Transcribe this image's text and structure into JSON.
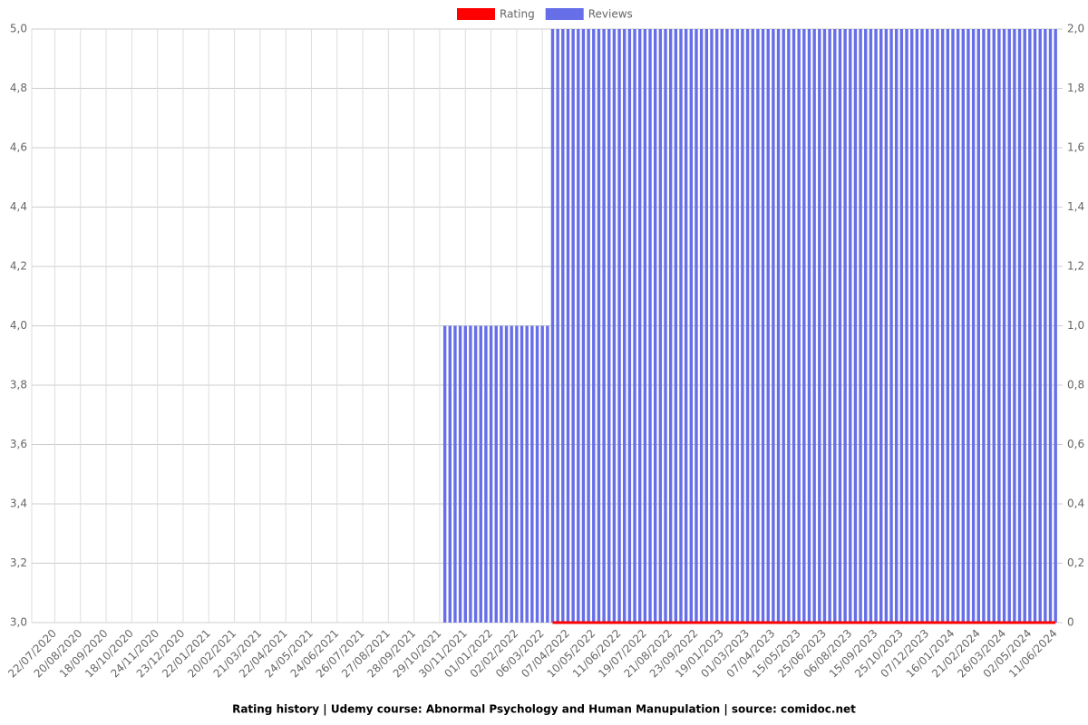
{
  "chart_data": {
    "type": "bar-line",
    "title": "Rating history | Udemy course: Abnormal Psychology and Human Manupulation | source: comidoc.net",
    "categories": [
      null,
      null,
      null,
      null,
      "22/07/2020",
      null,
      null,
      null,
      null,
      "20/08/2020",
      null,
      null,
      null,
      null,
      "18/09/2020",
      null,
      null,
      null,
      null,
      "18/10/2020",
      null,
      null,
      null,
      null,
      "24/11/2020",
      null,
      null,
      null,
      null,
      "23/12/2020",
      null,
      null,
      null,
      null,
      "22/01/2021",
      null,
      null,
      null,
      null,
      "20/02/2021",
      null,
      null,
      null,
      null,
      "21/03/2021",
      null,
      null,
      null,
      null,
      "22/04/2021",
      null,
      null,
      null,
      null,
      "24/05/2021",
      null,
      null,
      null,
      null,
      "24/06/2021",
      null,
      null,
      null,
      null,
      "26/07/2021",
      null,
      null,
      null,
      null,
      "27/08/2021",
      null,
      null,
      null,
      null,
      "28/09/2021",
      null,
      null,
      null,
      null,
      "29/10/2021",
      null,
      null,
      null,
      null,
      "30/11/2021",
      null,
      null,
      null,
      null,
      "01/01/2022",
      null,
      null,
      null,
      null,
      "02/02/2022",
      null,
      null,
      null,
      null,
      "06/03/2022",
      null,
      null,
      null,
      null,
      "07/04/2022",
      null,
      null,
      null,
      null,
      "10/05/2022",
      null,
      null,
      null,
      null,
      "11/06/2022",
      null,
      null,
      null,
      null,
      "19/07/2022",
      null,
      null,
      null,
      null,
      "21/08/2022",
      null,
      null,
      null,
      null,
      "23/09/2022",
      null,
      null,
      null,
      null,
      "19/01/2023",
      null,
      null,
      null,
      null,
      "01/03/2023",
      null,
      null,
      null,
      null,
      "07/04/2023",
      null,
      null,
      null,
      null,
      "15/05/2023",
      null,
      null,
      null,
      null,
      "25/06/2023",
      null,
      null,
      null,
      null,
      "06/08/2023",
      null,
      null,
      null,
      null,
      "15/09/2023",
      null,
      null,
      null,
      null,
      "25/10/2023",
      null,
      null,
      null,
      null,
      "07/12/2023",
      null,
      null,
      null,
      null,
      "16/01/2024",
      null,
      null,
      null,
      null,
      "21/02/2024",
      null,
      null,
      null,
      null,
      "26/03/2024",
      null,
      null,
      null,
      null,
      "02/05/2024",
      null,
      null,
      null,
      null,
      "11/06/2024"
    ],
    "series": [
      {
        "name": "Rating",
        "type": "line",
        "color": "#ff0000",
        "values": [
          null,
          null,
          null,
          null,
          null,
          null,
          null,
          null,
          null,
          null,
          null,
          null,
          null,
          null,
          null,
          null,
          null,
          null,
          null,
          null,
          null,
          null,
          null,
          null,
          null,
          null,
          null,
          null,
          null,
          null,
          null,
          null,
          null,
          null,
          null,
          null,
          null,
          null,
          null,
          null,
          null,
          null,
          null,
          null,
          null,
          null,
          null,
          null,
          null,
          null,
          null,
          null,
          null,
          null,
          null,
          null,
          null,
          null,
          null,
          null,
          null,
          null,
          null,
          null,
          null,
          null,
          null,
          null,
          null,
          null,
          null,
          null,
          null,
          null,
          null,
          null,
          null,
          null,
          null,
          null,
          null,
          null,
          null,
          null,
          null,
          null,
          null,
          null,
          null,
          null,
          null,
          null,
          null,
          null,
          null,
          null,
          null,
          null,
          null,
          null,
          null,
          3,
          3,
          3,
          3,
          3,
          3,
          3,
          3,
          3,
          3,
          3,
          3,
          3,
          3,
          3,
          3,
          3,
          3,
          3,
          3,
          3,
          3,
          3,
          3,
          3,
          3,
          3,
          3,
          3,
          3,
          3,
          3,
          3,
          3,
          3,
          3,
          3,
          3,
          3,
          3,
          3,
          3,
          3,
          3,
          3,
          3,
          3,
          3,
          3,
          3,
          3,
          3,
          3,
          3,
          3,
          3,
          3,
          3,
          3,
          3,
          3,
          3,
          3,
          3,
          3,
          3,
          3,
          3,
          3,
          3,
          3,
          3,
          3,
          3,
          3,
          3,
          3,
          3,
          3,
          3,
          3,
          3,
          3,
          3,
          3,
          3,
          3,
          3,
          3,
          3,
          3,
          3,
          3,
          3,
          3,
          3,
          3,
          3,
          3
        ]
      },
      {
        "name": "Reviews",
        "type": "bar",
        "axis": "y2",
        "color": "#666ee8",
        "values": [
          0,
          0,
          0,
          0,
          0,
          0,
          0,
          0,
          0,
          0,
          0,
          0,
          0,
          0,
          0,
          0,
          0,
          0,
          0,
          0,
          0,
          0,
          0,
          0,
          0,
          0,
          0,
          0,
          0,
          0,
          0,
          0,
          0,
          0,
          0,
          0,
          0,
          0,
          0,
          0,
          0,
          0,
          0,
          0,
          0,
          0,
          0,
          0,
          0,
          0,
          0,
          0,
          0,
          0,
          0,
          0,
          0,
          0,
          0,
          0,
          0,
          0,
          0,
          0,
          0,
          0,
          0,
          0,
          0,
          0,
          0,
          0,
          0,
          0,
          0,
          0,
          0,
          0,
          0,
          0,
          1,
          1,
          1,
          1,
          1,
          1,
          1,
          1,
          1,
          1,
          1,
          1,
          1,
          1,
          1,
          1,
          1,
          1,
          1,
          1,
          1,
          2,
          2,
          2,
          2,
          2,
          2,
          2,
          2,
          2,
          2,
          2,
          2,
          2,
          2,
          2,
          2,
          2,
          2,
          2,
          2,
          2,
          2,
          2,
          2,
          2,
          2,
          2,
          2,
          2,
          2,
          2,
          2,
          2,
          2,
          2,
          2,
          2,
          2,
          2,
          2,
          2,
          2,
          2,
          2,
          2,
          2,
          2,
          2,
          2,
          2,
          2,
          2,
          2,
          2,
          2,
          2,
          2,
          2,
          2,
          2,
          2,
          2,
          2,
          2,
          2,
          2,
          2,
          2,
          2,
          2,
          2,
          2,
          2,
          2,
          2,
          2,
          2,
          2,
          2,
          2,
          2,
          2,
          2,
          2,
          2,
          2,
          2,
          2,
          2,
          2,
          2,
          2,
          2,
          2,
          2,
          2,
          2,
          2,
          2
        ]
      }
    ],
    "ylim": [
      3,
      5
    ],
    "yticks": [
      {
        "value": 3,
        "label": "3,0"
      },
      {
        "value": 3.2,
        "label": "3,2"
      },
      {
        "value": 3.4,
        "label": "3,4"
      },
      {
        "value": 3.6,
        "label": "3,6"
      },
      {
        "value": 3.8,
        "label": "3,8"
      },
      {
        "value": 4,
        "label": "4,0"
      },
      {
        "value": 4.2,
        "label": "4,2"
      },
      {
        "value": 4.4,
        "label": "4,4"
      },
      {
        "value": 4.6,
        "label": "4,6"
      },
      {
        "value": 4.8,
        "label": "4,8"
      },
      {
        "value": 5,
        "label": "5,0"
      }
    ],
    "y2lim": [
      0,
      2
    ],
    "y2ticks": [
      0,
      {
        "value": 0.2,
        "label": "0,2"
      },
      {
        "value": 0.4,
        "label": "0,4"
      },
      {
        "value": 0.6,
        "label": "0,6"
      },
      {
        "value": 0.8,
        "label": "0,8"
      },
      {
        "value": 1,
        "label": "1,0"
      },
      {
        "value": 1.2,
        "label": "1,2"
      },
      {
        "value": 1.4,
        "label": "1,4"
      },
      {
        "value": 1.6,
        "label": "1,6"
      },
      {
        "value": 1.8,
        "label": "1,8"
      },
      {
        "value": 2,
        "label": "2,0"
      }
    ],
    "grid": true,
    "legend": "top"
  }
}
